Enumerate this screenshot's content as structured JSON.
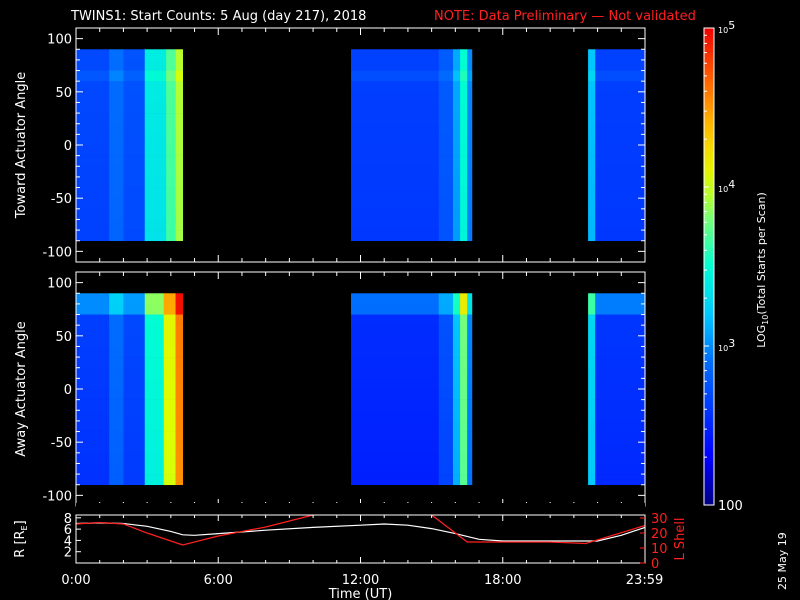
{
  "header": {
    "title": "TWINS1: Start Counts:  5 Aug (day 217), 2018",
    "note": "NOTE: Data Preliminary — Not validated"
  },
  "stamp": "25 May 19",
  "colors": {
    "background": "#000000",
    "note": "#ff2020",
    "orbit_r": "#ffffff",
    "orbit_lshell": "#ff2020"
  },
  "chart_data": [
    {
      "type": "heatmap",
      "panel": "toward",
      "ylabel": "Toward Actuator Angle",
      "ylim": [
        -110,
        110
      ],
      "yticks": [
        "100",
        "50",
        "0",
        "-50",
        "-100"
      ],
      "ytick_values": [
        100,
        50,
        0,
        -50,
        -100
      ],
      "angle_range": [
        -90,
        90
      ],
      "xlim_hours": [
        0,
        24
      ],
      "data_segments": [
        {
          "start": 0.0,
          "end": 4.5,
          "bands": [
            {
              "start": 0.0,
              "end": 1.4,
              "level": 2.7
            },
            {
              "start": 1.4,
              "end": 2.0,
              "level": 2.9
            },
            {
              "start": 2.0,
              "end": 2.9,
              "level": 2.75
            },
            {
              "start": 2.9,
              "end": 3.8,
              "level": 3.4
            },
            {
              "start": 3.8,
              "end": 4.2,
              "level": 3.7
            },
            {
              "start": 4.2,
              "end": 4.5,
              "level": 3.95
            }
          ]
        },
        {
          "start": 11.6,
          "end": 16.7,
          "bands": [
            {
              "start": 11.6,
              "end": 15.3,
              "level": 2.65
            },
            {
              "start": 15.3,
              "end": 15.9,
              "level": 2.8
            },
            {
              "start": 15.9,
              "end": 16.2,
              "level": 3.1
            },
            {
              "start": 16.2,
              "end": 16.5,
              "level": 3.5
            },
            {
              "start": 16.5,
              "end": 16.7,
              "level": 3.0
            }
          ]
        },
        {
          "start": 21.6,
          "end": 24.0,
          "bands": [
            {
              "start": 21.6,
              "end": 21.9,
              "level": 3.2
            },
            {
              "start": 21.9,
              "end": 24.0,
              "level": 2.65
            }
          ]
        }
      ]
    },
    {
      "type": "heatmap",
      "panel": "away",
      "ylabel": "Away Actuator Angle",
      "ylim": [
        -110,
        110
      ],
      "yticks": [
        "100",
        "50",
        "0",
        "-50",
        "-100"
      ],
      "ytick_values": [
        100,
        50,
        0,
        -50,
        -100
      ],
      "angle_range": [
        -90,
        90
      ],
      "xlim_hours": [
        0,
        24
      ],
      "data_segments": [
        {
          "start": 0.0,
          "end": 4.5,
          "bands": [
            {
              "start": 0.0,
              "end": 1.4,
              "level": 2.65
            },
            {
              "start": 1.4,
              "end": 2.0,
              "level": 2.9
            },
            {
              "start": 2.0,
              "end": 2.9,
              "level": 2.7
            },
            {
              "start": 2.9,
              "end": 3.7,
              "level": 3.5
            },
            {
              "start": 3.7,
              "end": 4.2,
              "level": 4.1
            },
            {
              "start": 4.2,
              "end": 4.5,
              "level": 4.6
            }
          ]
        },
        {
          "start": 11.6,
          "end": 16.7,
          "bands": [
            {
              "start": 11.6,
              "end": 15.3,
              "level": 2.55
            },
            {
              "start": 15.3,
              "end": 15.9,
              "level": 2.75
            },
            {
              "start": 15.9,
              "end": 16.2,
              "level": 3.2
            },
            {
              "start": 16.2,
              "end": 16.5,
              "level": 3.8
            },
            {
              "start": 16.5,
              "end": 16.7,
              "level": 3.0
            }
          ]
        },
        {
          "start": 21.6,
          "end": 24.0,
          "bands": [
            {
              "start": 21.6,
              "end": 21.9,
              "level": 3.3
            },
            {
              "start": 21.9,
              "end": 24.0,
              "level": 2.6
            }
          ]
        }
      ]
    },
    {
      "type": "line",
      "panel": "orbit",
      "xlabel": "Time (UT)",
      "ylabel": "R [R",
      "ylabel_sub": "E",
      "ylabel_close": "]",
      "y2label": "L Shell",
      "xticks": [
        "0:00",
        "6:00",
        "12:00",
        "18:00",
        "23:59"
      ],
      "xtick_hours": [
        0,
        6,
        12,
        18,
        23.98
      ],
      "xlim_hours": [
        0,
        24
      ],
      "ylim": [
        0,
        8.5
      ],
      "yticks": [
        "8",
        "6",
        "4",
        "2"
      ],
      "ytick_values": [
        8,
        6,
        4,
        2
      ],
      "y2lim": [
        0,
        32
      ],
      "y2ticks": [
        "30",
        "20",
        "10",
        "0"
      ],
      "y2tick_values": [
        30,
        20,
        10,
        0
      ],
      "series": [
        {
          "axis": "R",
          "x": [
            0,
            1,
            2,
            3,
            4,
            4.5,
            5,
            6,
            8,
            10,
            12,
            13,
            14,
            15,
            16,
            17,
            18,
            19,
            20,
            21,
            22,
            23,
            24
          ],
          "y": [
            7.0,
            7.1,
            7.0,
            6.5,
            5.6,
            5.0,
            4.9,
            5.2,
            5.8,
            6.3,
            6.7,
            6.9,
            6.7,
            6.1,
            5.2,
            4.2,
            3.9,
            3.9,
            3.9,
            3.9,
            3.9,
            4.9,
            6.3
          ]
        },
        {
          "axis": "L",
          "x": [
            0,
            1,
            2,
            3,
            4.5,
            6,
            8,
            10
          ],
          "y": [
            26,
            27,
            26,
            20,
            12,
            18,
            24,
            32
          ]
        },
        {
          "axis": "L",
          "x": [
            15,
            16.5,
            18,
            20,
            21.5,
            24
          ],
          "y": [
            32,
            14,
            14,
            14,
            13,
            25
          ]
        }
      ]
    },
    {
      "type": "colorbar",
      "label": "LOG",
      "label_sub": "10",
      "label_rest": "(Total Starts per Scan)",
      "vlim_log": [
        2,
        5
      ],
      "ticks": [
        {
          "text": "100",
          "log": 2,
          "style": "big"
        },
        {
          "text": "10",
          "sup": "3",
          "log": 3,
          "style": "small"
        },
        {
          "text": "10",
          "sup": "4",
          "log": 4,
          "style": "small"
        },
        {
          "text": "10",
          "sup": "5",
          "log": 5,
          "style": "small"
        }
      ]
    }
  ]
}
